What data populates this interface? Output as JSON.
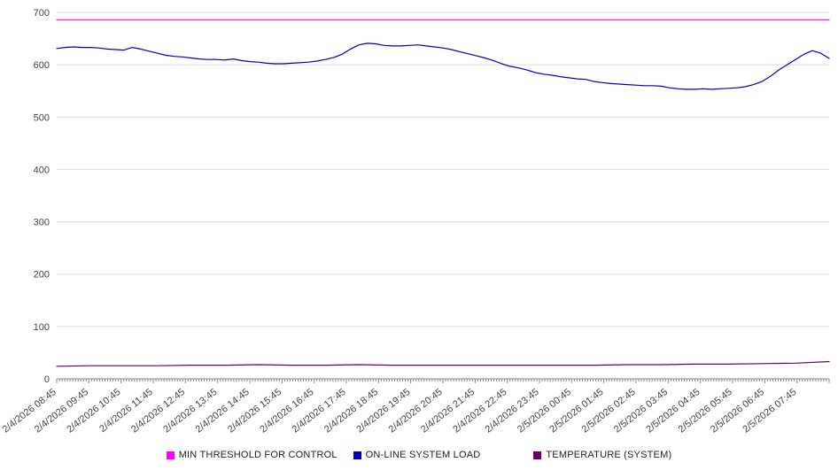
{
  "chart_data": {
    "type": "line",
    "title": "",
    "xlabel": "",
    "ylabel": "",
    "ylim": [
      0,
      700
    ],
    "yticks": [
      0,
      100,
      200,
      300,
      400,
      500,
      600,
      700
    ],
    "grid": "horizontal",
    "legend_position": "bottom",
    "x_labels": [
      "2/4/2026 08:45",
      "2/4/2026 09:45",
      "2/4/2026 10:45",
      "2/4/2026 11:45",
      "2/4/2026 12:45",
      "2/4/2026 13:45",
      "2/4/2026 14:45",
      "2/4/2026 15:45",
      "2/4/2026 16:45",
      "2/4/2026 17:45",
      "2/4/2026 18:45",
      "2/4/2026 19:45",
      "2/4/2026 20:45",
      "2/4/2026 21:45",
      "2/4/2026 22:45",
      "2/4/2026 23:45",
      "2/5/2026 00:45",
      "2/5/2026 01:45",
      "2/5/2026 02:45",
      "2/5/2026 03:45",
      "2/5/2026 04:45",
      "2/5/2026 05:45",
      "2/5/2026 06:45",
      "2/5/2026 07:45"
    ],
    "series": [
      {
        "name": "MIN THRESHOLD FOR CONTROL",
        "color": "#ff00ff",
        "values": [
          686,
          686
        ]
      },
      {
        "name": "ON-LINE SYSTEM LOAD",
        "color": "#0000bb",
        "values": [
          631,
          633,
          634,
          633,
          633,
          632,
          630,
          629,
          628,
          633,
          630,
          626,
          622,
          618,
          616,
          615,
          613,
          611,
          610,
          610,
          609,
          611,
          608,
          606,
          605,
          603,
          602,
          602,
          603,
          604,
          605,
          607,
          610,
          614,
          620,
          630,
          638,
          641,
          640,
          637,
          636,
          636,
          637,
          638,
          636,
          634,
          632,
          629,
          625,
          621,
          617,
          613,
          608,
          602,
          597,
          594,
          590,
          585,
          582,
          580,
          577,
          575,
          573,
          572,
          568,
          566,
          564,
          563,
          562,
          561,
          560,
          560,
          559,
          556,
          554,
          553,
          553,
          554,
          553,
          554,
          555,
          556,
          558,
          562,
          568,
          578,
          590,
          600,
          610,
          620,
          627,
          622,
          612
        ]
      },
      {
        "name": "TEMPERATURE (SYSTEM)",
        "color": "#660066",
        "values": [
          24,
          25,
          25,
          25,
          26,
          26,
          27,
          26,
          26,
          27,
          26,
          26,
          26,
          26,
          26,
          26,
          26,
          27,
          27,
          28,
          28,
          29,
          30,
          33
        ]
      }
    ]
  }
}
